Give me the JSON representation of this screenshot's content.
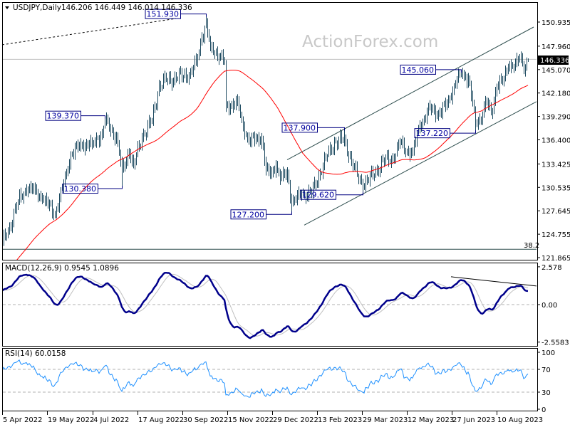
{
  "header": {
    "symbol_timeframe": "USDJPY,Daily",
    "ohlc_readout": "146.206 146.449 146.014 146.336",
    "menu_icon": "triangle-down-icon"
  },
  "watermark": "ActionForex.com",
  "colors": {
    "bars": "#1d4a60",
    "moving_average": "#ff0000",
    "macd_line": "#00008b",
    "macd_signal": "#c0c0c0",
    "rsi_line": "#1e90ff",
    "annotation": "#000080",
    "trendline": "#2f4f4f"
  },
  "chart_data": {
    "type": "ohlc",
    "title": "USDJPY,Daily",
    "x_unit": "trading-day index from 5 Apr 2022",
    "price_axis": {
      "ylim": [
        121.865,
        150.935
      ],
      "ticks": [
        "150.935",
        "147.960",
        "145.070",
        "142.180",
        "139.290",
        "136.400",
        "133.425",
        "130.535",
        "127.645",
        "124.755",
        "121.865"
      ],
      "current_price": "146.336"
    },
    "date_ticks": [
      {
        "i": 0,
        "label": "5 Apr 2022"
      },
      {
        "i": 31.5,
        "label": "19 May 2022"
      },
      {
        "i": 63.5,
        "label": "4 Jul 2022"
      },
      {
        "i": 95,
        "label": "17 Aug 2022"
      },
      {
        "i": 126.5,
        "label": "30 Sep 2022"
      },
      {
        "i": 158,
        "label": "15 Nov 2022"
      },
      {
        "i": 189.5,
        "label": "29 Dec 2022"
      },
      {
        "i": 221,
        "label": "13 Feb 2023"
      },
      {
        "i": 252.5,
        "label": "29 Mar 2023"
      },
      {
        "i": 284,
        "label": "12 May 2023"
      },
      {
        "i": 315.5,
        "label": "27 Jun 2023"
      },
      {
        "i": 347,
        "label": "10 Aug 2023"
      }
    ],
    "close_waypoints": [
      [
        -90,
        114.8
      ],
      [
        -60,
        115.6
      ],
      [
        -30,
        119.2
      ],
      [
        -10,
        122.4
      ],
      [
        0,
        123.6
      ],
      [
        5,
        125.62
      ],
      [
        11,
        128.86
      ],
      [
        17,
        130.26
      ],
      [
        23,
        130.26
      ],
      [
        28,
        129.12
      ],
      [
        37,
        127.37
      ],
      [
        43,
        130.87
      ],
      [
        48,
        134.64
      ],
      [
        56,
        135.87
      ],
      [
        63,
        135.87
      ],
      [
        70,
        137.27
      ],
      [
        72,
        138.76
      ],
      [
        80,
        136.74
      ],
      [
        84,
        132.63
      ],
      [
        89,
        135.0
      ],
      [
        92,
        133.24
      ],
      [
        98,
        136.74
      ],
      [
        105,
        138.76
      ],
      [
        110,
        143.14
      ],
      [
        115,
        143.75
      ],
      [
        122,
        144.01
      ],
      [
        132,
        144.63
      ],
      [
        136,
        146.03
      ],
      [
        140,
        149.01
      ],
      [
        143,
        150.76
      ],
      [
        146,
        147.78
      ],
      [
        150,
        147.26
      ],
      [
        156,
        146.03
      ],
      [
        157,
        140.51
      ],
      [
        165,
        141.12
      ],
      [
        168,
        138.76
      ],
      [
        173,
        136.13
      ],
      [
        182,
        136.74
      ],
      [
        185,
        132.63
      ],
      [
        188,
        132.01
      ],
      [
        192,
        133.24
      ],
      [
        195,
        131.49
      ],
      [
        200,
        132.36
      ],
      [
        203,
        128.51
      ],
      [
        210,
        129.74
      ],
      [
        217,
        129.74
      ],
      [
        222,
        132.01
      ],
      [
        228,
        134.38
      ],
      [
        233,
        136.13
      ],
      [
        240,
        136.4
      ],
      [
        245,
        133.77
      ],
      [
        250,
        131.49
      ],
      [
        253,
        130.87
      ],
      [
        260,
        132.01
      ],
      [
        267,
        133.77
      ],
      [
        275,
        134.12
      ],
      [
        279,
        136.13
      ],
      [
        283,
        134.99
      ],
      [
        288,
        134.99
      ],
      [
        293,
        138.14
      ],
      [
        300,
        140.25
      ],
      [
        307,
        139.64
      ],
      [
        312,
        140.77
      ],
      [
        317,
        143.14
      ],
      [
        322,
        144.63
      ],
      [
        327,
        144.01
      ],
      [
        330,
        140.77
      ],
      [
        332,
        138.5
      ],
      [
        337,
        139.37
      ],
      [
        339,
        141.39
      ],
      [
        343,
        139.64
      ],
      [
        347,
        143.14
      ],
      [
        352,
        143.75
      ],
      [
        355,
        145.5
      ],
      [
        360,
        145.77
      ],
      [
        364,
        146.64
      ],
      [
        367,
        145.15
      ],
      [
        369,
        146.336
      ]
    ],
    "last_bar": {
      "open": 146.206,
      "high": 146.449,
      "low": 146.014,
      "close": 146.336
    },
    "annotations": [
      {
        "i": 143,
        "value": 151.93,
        "label": "151.930",
        "type": "high"
      },
      {
        "i": 72,
        "value": 139.37,
        "label": "139.370",
        "type": "high"
      },
      {
        "i": 84,
        "value": 130.38,
        "label": "130.380",
        "type": "low"
      },
      {
        "i": 203,
        "value": 127.2,
        "label": "127.200",
        "type": "low"
      },
      {
        "i": 240,
        "value": 137.9,
        "label": "137.900",
        "type": "high"
      },
      {
        "i": 253,
        "value": 129.62,
        "label": "129.620",
        "type": "low"
      },
      {
        "i": 322,
        "value": 145.06,
        "label": "145.060",
        "type": "high"
      },
      {
        "i": 332,
        "value": 137.22,
        "label": "137.220",
        "type": "low"
      }
    ],
    "trendlines": [
      {
        "name": "dotted-resistance",
        "from": [
          0,
          148.13
        ],
        "to": [
          122,
          151.37
        ],
        "style": "dotted"
      },
      {
        "name": "channel-upper",
        "from": [
          200,
          133.94
        ],
        "to": [
          373,
          150.32
        ],
        "style": "solid"
      },
      {
        "name": "channel-lower",
        "from": [
          212,
          125.88
        ],
        "to": [
          375,
          141.12
        ],
        "style": "solid"
      }
    ],
    "fib_level": {
      "label": "38.2",
      "price": 122.9
    },
    "macd": {
      "label": "MACD(12,26,9) 0.9545 1.0896",
      "ticks": [
        "2.578",
        "0.00",
        "-2.5583"
      ],
      "ylim": [
        -2.5583,
        2.578
      ],
      "trendline": {
        "from": [
          315,
          1.9
        ],
        "to": [
          375,
          1.27
        ]
      }
    },
    "rsi": {
      "label": "RSI(14) 60.0158",
      "ticks": [
        "100",
        "70",
        "30",
        "0"
      ],
      "levels": [
        70,
        30
      ],
      "ylim": [
        0,
        100
      ]
    }
  }
}
